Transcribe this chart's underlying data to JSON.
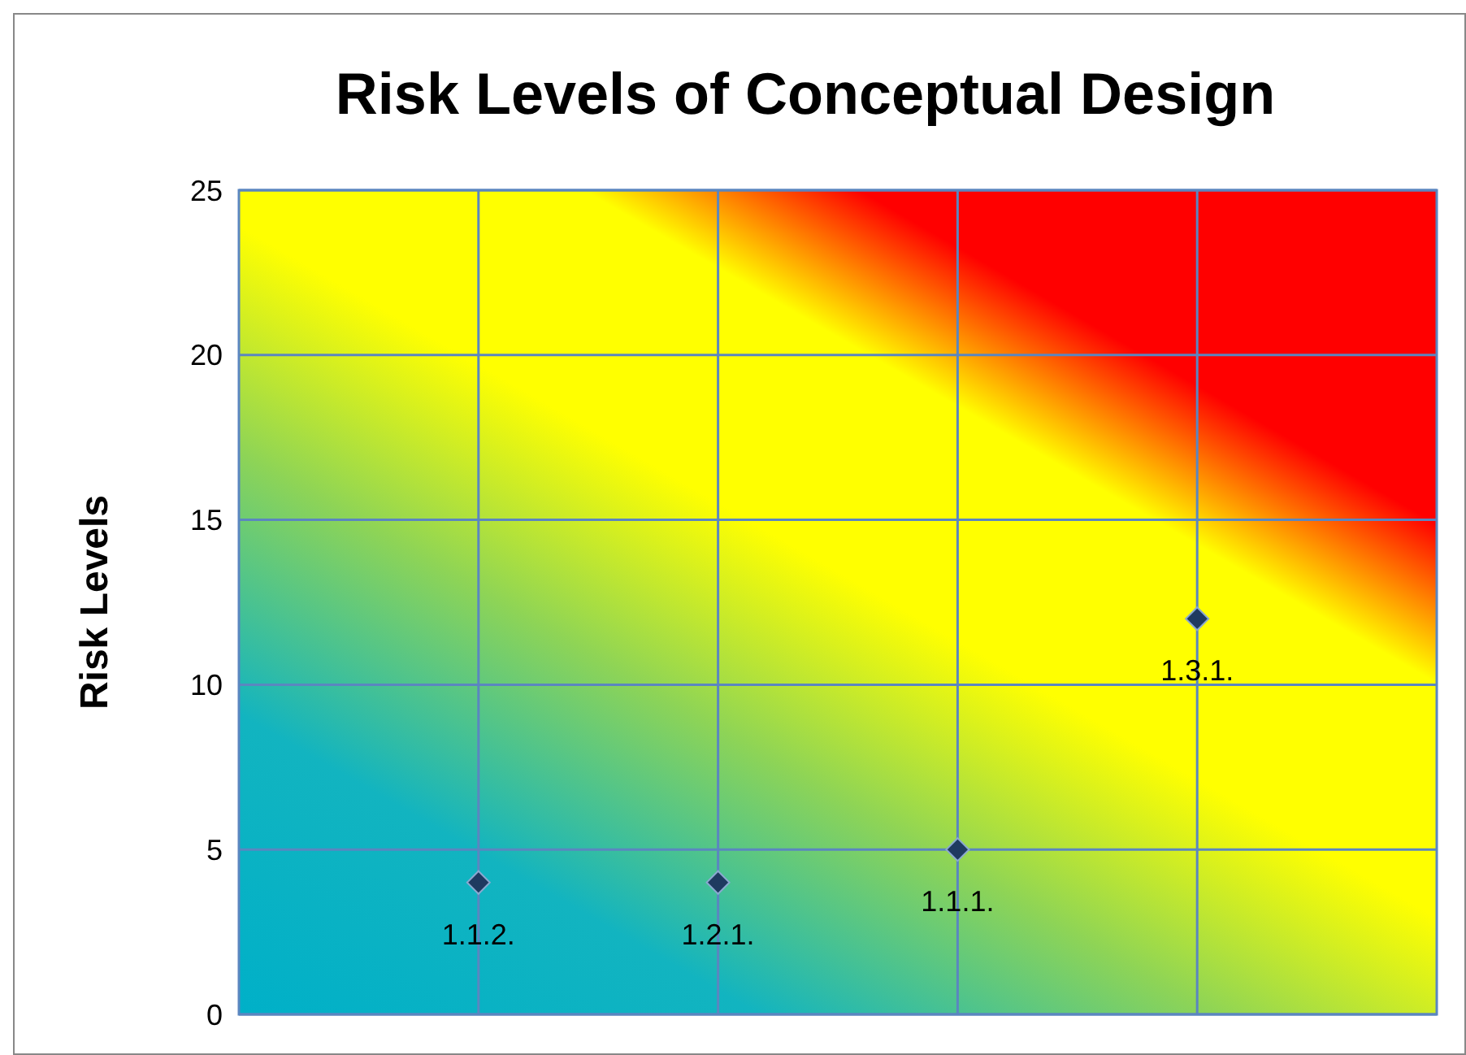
{
  "chart_data": {
    "type": "scatter",
    "title": "Risk Levels of Conceptual Design",
    "ylabel": "Risk Levels",
    "categories": [
      null,
      null,
      null,
      null
    ],
    "values": [
      4,
      4,
      5,
      12
    ],
    "color": "#1f3a60",
    "marker": "diamond",
    "value_labels": [
      "1.1.2.",
      "1.2.1.",
      "1.1.1.",
      "1.3.1."
    ],
    "ylim": [
      0,
      25
    ],
    "yticks": [
      0,
      5,
      10,
      15,
      20,
      25
    ],
    "grid": true,
    "tick_labels": "y"
  }
}
